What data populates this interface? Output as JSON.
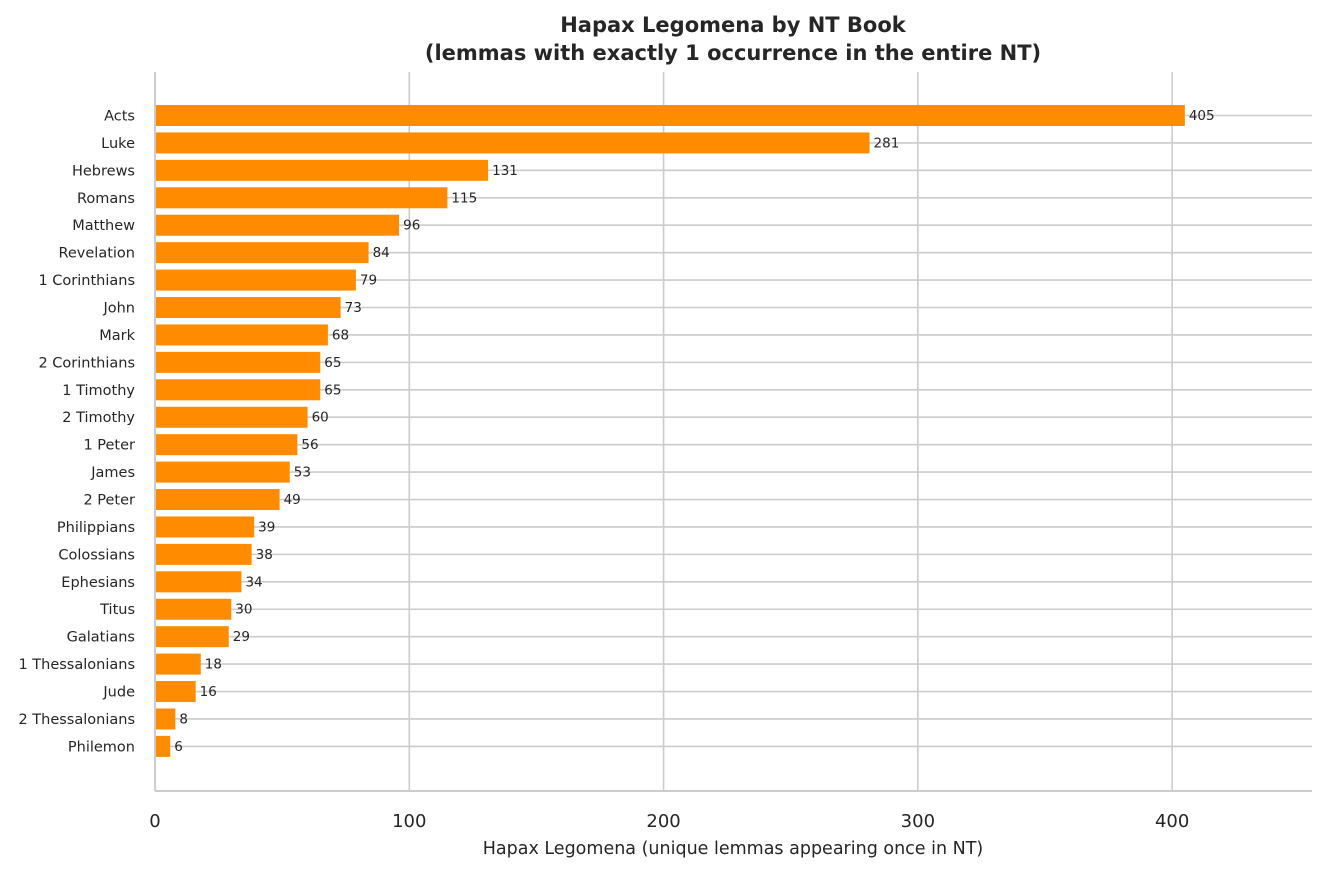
{
  "chart_data": {
    "type": "bar",
    "orientation": "horizontal",
    "title": "Hapax Legomena by NT Book",
    "subtitle": "(lemmas with exactly 1 occurrence in the entire NT)",
    "xlabel": "Hapax Legomena (unique lemmas appearing once in NT)",
    "ylabel": "",
    "xlim": [
      0,
      455
    ],
    "xticks": [
      0,
      100,
      200,
      300,
      400
    ],
    "grid": true,
    "bar_color": "#ff8c00",
    "categories": [
      "Acts",
      "Luke",
      "Hebrews",
      "Romans",
      "Matthew",
      "Revelation",
      "1 Corinthians",
      "John",
      "Mark",
      "2 Corinthians",
      "1 Timothy",
      "2 Timothy",
      "1 Peter",
      "James",
      "2 Peter",
      "Philippians",
      "Colossians",
      "Ephesians",
      "Titus",
      "Galatians",
      "1 Thessalonians",
      "Jude",
      "2 Thessalonians",
      "Philemon"
    ],
    "values": [
      405,
      281,
      131,
      115,
      96,
      84,
      79,
      73,
      68,
      65,
      65,
      60,
      56,
      53,
      49,
      39,
      38,
      34,
      30,
      29,
      18,
      16,
      8,
      6
    ]
  }
}
